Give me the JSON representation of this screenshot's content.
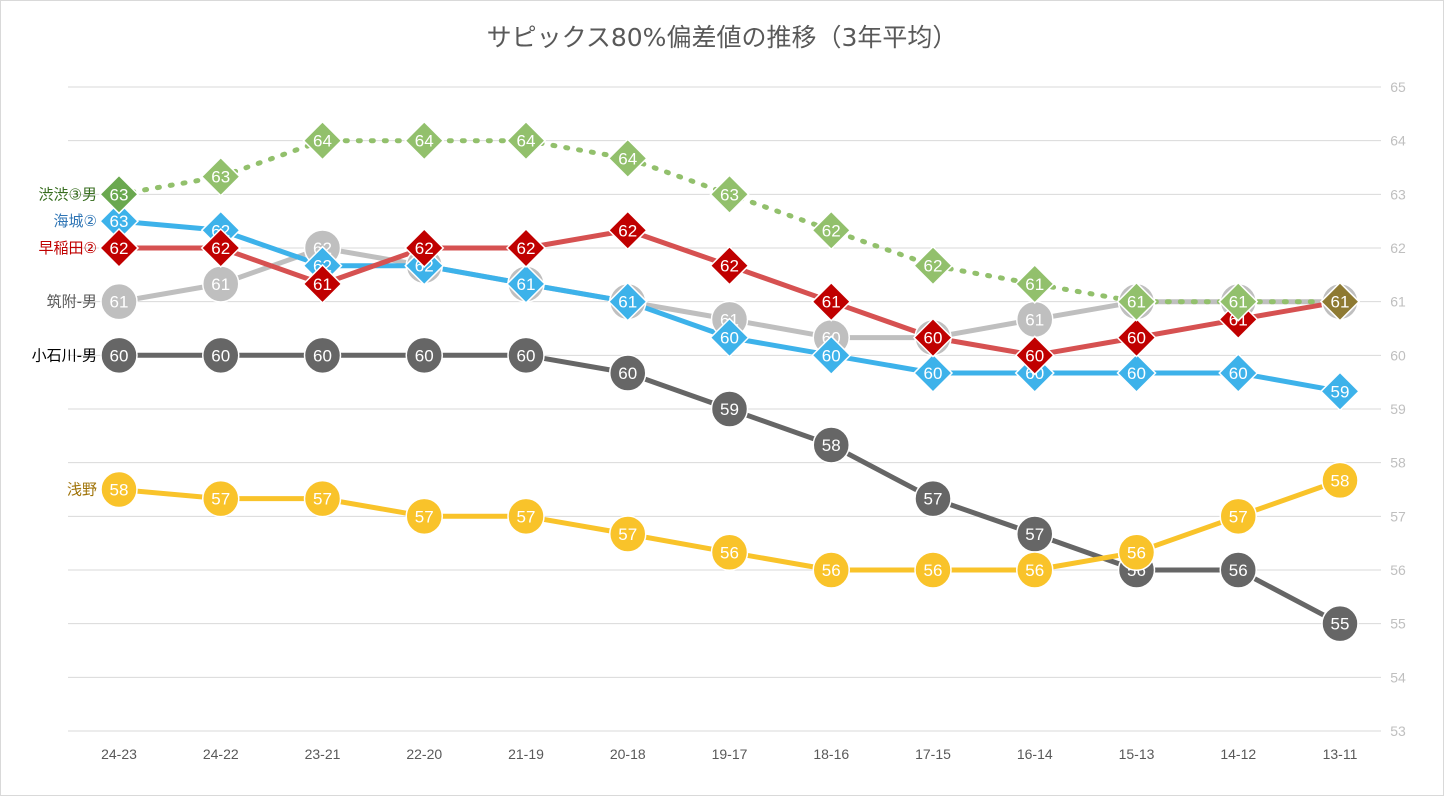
{
  "chart_data": {
    "type": "line",
    "title": "サピックス80%偏差値の推移（3年平均）",
    "categories": [
      "24-23",
      "24-22",
      "23-21",
      "22-20",
      "21-19",
      "20-18",
      "19-17",
      "18-16",
      "17-15",
      "16-14",
      "15-13",
      "14-12",
      "13-11"
    ],
    "ylim": [
      53,
      65
    ],
    "yticks": [
      "53",
      "54",
      "55",
      "56",
      "57",
      "58",
      "59",
      "60",
      "61",
      "62",
      "63",
      "64",
      "65"
    ],
    "y_axis_position": "right",
    "grid": true,
    "legend": "none (series names labeled at left of lines)",
    "series": [
      {
        "name": "小石川-男",
        "color": "#666666",
        "marker": "circle",
        "dash": "solid",
        "values": [
          60,
          60,
          60,
          60,
          60,
          59.67,
          59,
          58.33,
          57.33,
          56.67,
          56,
          56,
          55
        ],
        "labels": [
          "60",
          "60",
          "60",
          "60",
          "60",
          "60",
          "59",
          "58",
          "57",
          "57",
          "56",
          "56",
          "55"
        ]
      },
      {
        "name": "浅野",
        "color": "#f9c32a",
        "marker": "circle",
        "dash": "solid",
        "values": [
          57.5,
          57.33,
          57.33,
          57,
          57,
          56.67,
          56.33,
          56,
          56,
          56,
          56.33,
          57,
          57.67
        ],
        "labels": [
          "58",
          "57",
          "57",
          "57",
          "57",
          "57",
          "56",
          "56",
          "56",
          "56",
          "56",
          "57",
          "58"
        ]
      },
      {
        "name": "筑附-男",
        "color": "#bfbfbf",
        "marker": "circle",
        "dash": "solid",
        "values": [
          61,
          61.33,
          62,
          61.67,
          61.33,
          61,
          60.67,
          60.33,
          60.33,
          60.67,
          61,
          61,
          61
        ],
        "labels": [
          "61",
          "61",
          "62",
          "62",
          "61",
          "61",
          "61",
          "60",
          "60",
          "61",
          "61",
          "61",
          "61"
        ]
      },
      {
        "name": "海城②",
        "color": "#3db2ea",
        "marker": "diamond",
        "dash": "solid",
        "values": [
          62.5,
          62.33,
          61.67,
          61.67,
          61.33,
          61,
          60.33,
          60,
          59.67,
          59.67,
          59.67,
          59.67,
          59.33
        ],
        "labels": [
          "63",
          "62",
          "62",
          "62",
          "61",
          "61",
          "60",
          "60",
          "60",
          "60",
          "60",
          "60",
          "59"
        ]
      },
      {
        "name": "早稲田②",
        "color": "#d65151",
        "marker": "diamond",
        "dash": "solid",
        "marker_color": "#c00000",
        "values": [
          62,
          62,
          61.33,
          62,
          62,
          62.33,
          61.67,
          61,
          60.33,
          60,
          60.33,
          60.67,
          61
        ],
        "labels": [
          "62",
          "62",
          "61",
          "62",
          "62",
          "62",
          "62",
          "61",
          "60",
          "60",
          "60",
          "61",
          "61"
        ]
      },
      {
        "name": "渋渋③男",
        "color": "#92c06c",
        "marker": "diamond",
        "dash": "dotted",
        "values": [
          63,
          63.33,
          64,
          64,
          64,
          63.67,
          63,
          62.33,
          61.67,
          61.33,
          61,
          61,
          61
        ],
        "labels": [
          "63",
          "63",
          "64",
          "64",
          "64",
          "64",
          "63",
          "62",
          "62",
          "61",
          "61",
          "61",
          "61"
        ]
      }
    ],
    "series_label_colors": {
      "渋渋③男": "#376d1f",
      "海城②": "#2f75b5",
      "早稲田②": "#c00000",
      "筑附-男": "#595959",
      "小石川-男": "#000000",
      "浅野": "#a0740a"
    }
  }
}
